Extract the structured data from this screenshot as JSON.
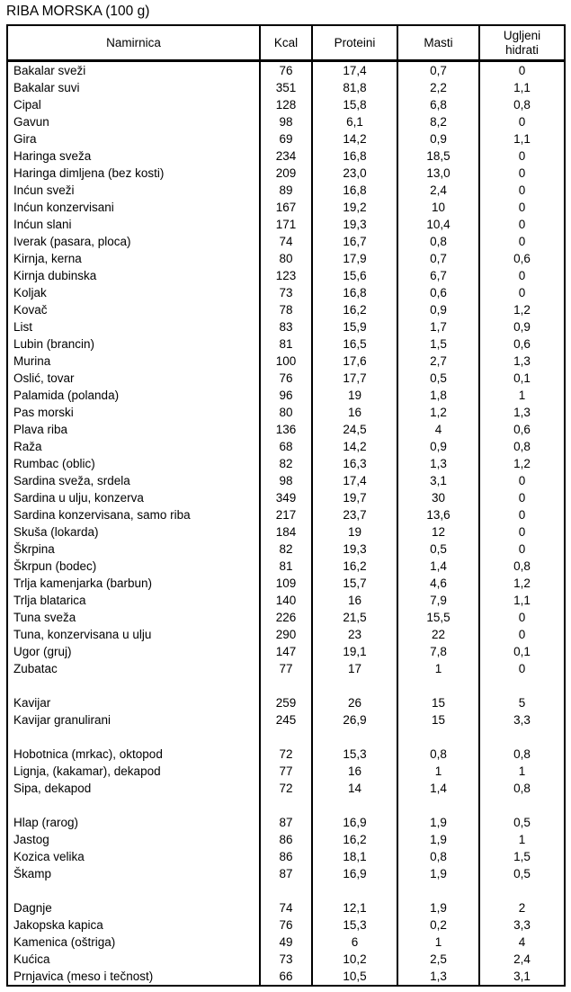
{
  "title": "RIBA MORSKA (100 g)",
  "table": {
    "headers": {
      "namirnica": "Namirnica",
      "kcal": "Kcal",
      "proteini": "Proteini",
      "masti": "Masti",
      "ugljeni_hidrati": "Ugljeni hidrati"
    },
    "rows": [
      [
        "Bakalar sveži",
        "76",
        "17,4",
        "0,7",
        "0"
      ],
      [
        "Bakalar suvi",
        "351",
        "81,8",
        "2,2",
        "1,1"
      ],
      [
        "Cipal",
        "128",
        "15,8",
        "6,8",
        "0,8"
      ],
      [
        "Gavun",
        "98",
        "6,1",
        "8,2",
        "0"
      ],
      [
        "Gira",
        "69",
        "14,2",
        "0,9",
        "1,1"
      ],
      [
        "Haringa sveža",
        "234",
        "16,8",
        "18,5",
        "0"
      ],
      [
        "Haringa dimljena (bez kosti)",
        "209",
        "23,0",
        "13,0",
        "0"
      ],
      [
        "Inćun sveži",
        "89",
        "16,8",
        "2,4",
        "0"
      ],
      [
        "Inćun konzervisani",
        "167",
        "19,2",
        "10",
        "0"
      ],
      [
        "Inćun slani",
        "171",
        "19,3",
        "10,4",
        "0"
      ],
      [
        "Iverak (pasara, ploca)",
        "74",
        "16,7",
        "0,8",
        "0"
      ],
      [
        "Kirnja, kerna",
        "80",
        "17,9",
        "0,7",
        "0,6"
      ],
      [
        "Kirnja dubinska",
        "123",
        "15,6",
        "6,7",
        "0"
      ],
      [
        "Koljak",
        "73",
        "16,8",
        "0,6",
        "0"
      ],
      [
        "Kovač",
        "78",
        "16,2",
        "0,9",
        "1,2"
      ],
      [
        "List",
        "83",
        "15,9",
        "1,7",
        "0,9"
      ],
      [
        "Lubin (brancin)",
        "81",
        "16,5",
        "1,5",
        "0,6"
      ],
      [
        "Murina",
        "100",
        "17,6",
        "2,7",
        "1,3"
      ],
      [
        "Oslić, tovar",
        "76",
        "17,7",
        "0,5",
        "0,1"
      ],
      [
        "Palamida (polanda)",
        "96",
        "19",
        "1,8",
        "1"
      ],
      [
        "Pas morski",
        "80",
        "16",
        "1,2",
        "1,3"
      ],
      [
        "Plava riba",
        "136",
        "24,5",
        "4",
        "0,6"
      ],
      [
        "Raža",
        "68",
        "14,2",
        "0,9",
        "0,8"
      ],
      [
        "Rumbac (oblic)",
        "82",
        "16,3",
        "1,3",
        "1,2"
      ],
      [
        "Sardina sveža, srdela",
        "98",
        "17,4",
        "3,1",
        "0"
      ],
      [
        "Sardina u ulju, konzerva",
        "349",
        "19,7",
        "30",
        "0"
      ],
      [
        "Sardina konzervisana, samo riba",
        "217",
        "23,7",
        "13,6",
        "0"
      ],
      [
        "Skuša (lokarda)",
        "184",
        "19",
        "12",
        "0"
      ],
      [
        "Škrpina",
        "82",
        "19,3",
        "0,5",
        "0"
      ],
      [
        "Škrpun (bodec)",
        "81",
        "16,2",
        "1,4",
        "0,8"
      ],
      [
        "Trlja kamenjarka (barbun)",
        "109",
        "15,7",
        "4,6",
        "1,2"
      ],
      [
        "Trlja blatarica",
        "140",
        "16",
        "7,9",
        "1,1"
      ],
      [
        "Tuna sveža",
        "226",
        "21,5",
        "15,5",
        "0"
      ],
      [
        "Tuna, konzervisana u ulju",
        "290",
        "23",
        "22",
        "0"
      ],
      [
        "Ugor (gruj)",
        "147",
        "19,1",
        "7,8",
        "0,1"
      ],
      [
        "Zubatac",
        "77",
        "17",
        "1",
        "0"
      ],
      [
        "",
        "",
        "",
        "",
        ""
      ],
      [
        "Kavijar",
        "259",
        "26",
        "15",
        "5"
      ],
      [
        "Kavijar granulirani",
        "245",
        "26,9",
        "15",
        "3,3"
      ],
      [
        "",
        "",
        "",
        "",
        ""
      ],
      [
        "Hobotnica (mrkac), oktopod",
        "72",
        "15,3",
        "0,8",
        "0,8"
      ],
      [
        "Lignja, (kakamar), dekapod",
        "77",
        "16",
        "1",
        "1"
      ],
      [
        "Sipa, dekapod",
        "72",
        "14",
        "1,4",
        "0,8"
      ],
      [
        "",
        "",
        "",
        "",
        ""
      ],
      [
        "Hlap (rarog)",
        "87",
        "16,9",
        "1,9",
        "0,5"
      ],
      [
        "Jastog",
        "86",
        "16,2",
        "1,9",
        "1"
      ],
      [
        "Kozica velika",
        "86",
        "18,1",
        "0,8",
        "1,5"
      ],
      [
        "Škamp",
        "87",
        "16,9",
        "1,9",
        "0,5"
      ],
      [
        "",
        "",
        "",
        "",
        ""
      ],
      [
        "Dagnje",
        "74",
        "12,1",
        "1,9",
        "2"
      ],
      [
        "Jakopska kapica",
        "76",
        "15,3",
        "0,2",
        "3,3"
      ],
      [
        "Kamenica (oštriga)",
        "49",
        "6",
        "1",
        "4"
      ],
      [
        "Kućica",
        "73",
        "10,2",
        "2,5",
        "2,4"
      ],
      [
        "Prnjavica (meso i tečnost)",
        "66",
        "10,5",
        "1,3",
        "3,1"
      ]
    ]
  }
}
